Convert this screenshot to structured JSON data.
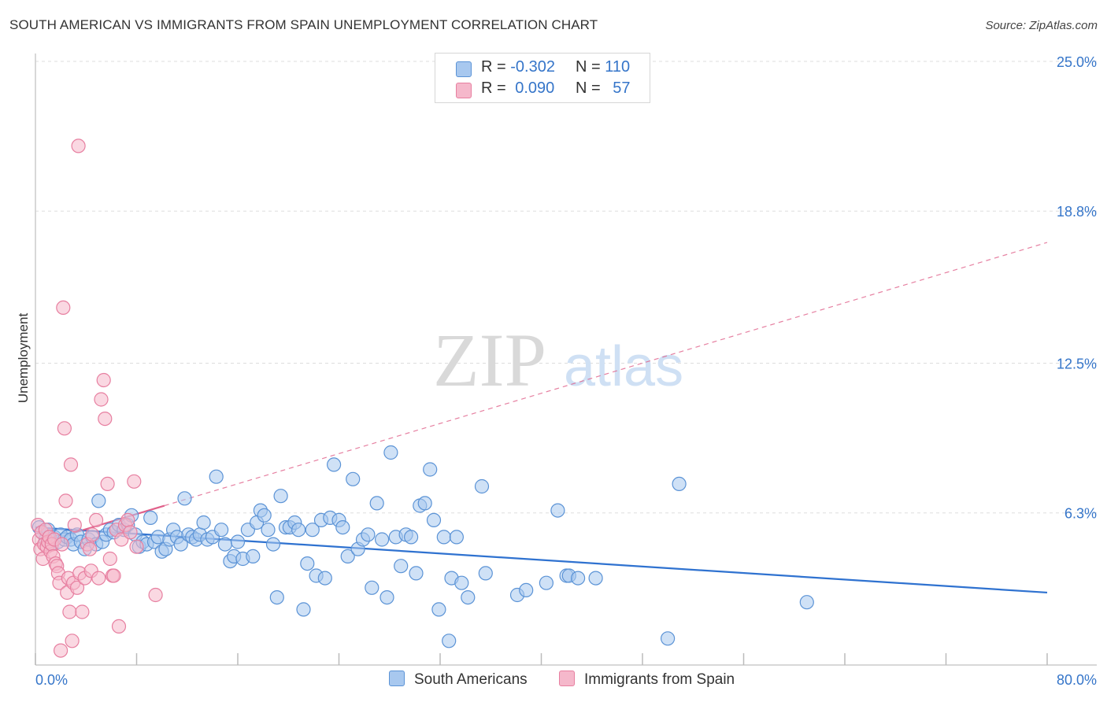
{
  "header": {
    "title": "SOUTH AMERICAN VS IMMIGRANTS FROM SPAIN UNEMPLOYMENT CORRELATION CHART",
    "source": "Source: ZipAtlas.com"
  },
  "watermark": {
    "zip": "ZIP",
    "atlas": "atlas"
  },
  "legend": {
    "rows": [
      {
        "r_label": "R =",
        "r_value": "-0.302",
        "n_label": "N =",
        "n_value": "110",
        "color": "#a8c8ef"
      },
      {
        "r_label": "R =",
        "r_value": "0.090",
        "n_label": "N =",
        "n_value": "57",
        "color": "#f5b8cb"
      }
    ]
  },
  "bottom_legend": {
    "items": [
      {
        "label": "South Americans",
        "color": "#a8c8ef"
      },
      {
        "label": "Immigrants from Spain",
        "color": "#f5b8cb"
      }
    ]
  },
  "colors": {
    "blue_fill": "#a8c8ef",
    "blue_stroke": "#5b93d6",
    "blue_line": "#2f72d0",
    "pink_fill": "#f5b8cb",
    "pink_stroke": "#e77fa0",
    "pink_line": "#e0608a",
    "grid": "#dddddd",
    "tick_text": "#3575c9"
  },
  "chart_data": {
    "type": "scatter",
    "title": "SOUTH AMERICAN VS IMMIGRANTS FROM SPAIN UNEMPLOYMENT CORRELATION CHART",
    "xlabel": "",
    "ylabel": "Unemployment",
    "xlim": [
      0,
      80
    ],
    "ylim": [
      0,
      25
    ],
    "x_tick_labels": [
      "0.0%",
      "80.0%"
    ],
    "y_ticks": [
      6.3,
      12.5,
      18.8,
      25.0
    ],
    "y_tick_labels": [
      "6.3%",
      "12.5%",
      "18.8%",
      "25.0%"
    ],
    "grid": true,
    "legend_position": "top-center",
    "series": [
      {
        "name": "South Americans",
        "R": -0.302,
        "N": 110,
        "trend": {
          "x": [
            0,
            80
          ],
          "y": [
            5.7,
            3.0
          ],
          "style": "solid"
        },
        "points": [
          [
            0.3,
            5.7
          ],
          [
            0.5,
            5.5
          ],
          [
            0.8,
            5.2
          ],
          [
            1.0,
            5.6
          ],
          [
            1.2,
            5.0
          ],
          [
            1.5,
            5.3
          ],
          [
            1.8,
            5.1
          ],
          [
            2.0,
            5.4
          ],
          [
            2.3,
            5.2
          ],
          [
            2.5,
            5.3
          ],
          [
            2.8,
            5.2
          ],
          [
            3.0,
            5.0
          ],
          [
            3.3,
            5.4
          ],
          [
            3.6,
            5.1
          ],
          [
            3.9,
            4.8
          ],
          [
            4.2,
            5.2
          ],
          [
            4.5,
            5.3
          ],
          [
            4.8,
            5.0
          ],
          [
            5.0,
            6.8
          ],
          [
            5.3,
            5.1
          ],
          [
            5.6,
            5.4
          ],
          [
            5.9,
            5.6
          ],
          [
            6.2,
            5.5
          ],
          [
            6.6,
            5.8
          ],
          [
            7.0,
            5.6
          ],
          [
            7.3,
            5.8
          ],
          [
            7.6,
            6.2
          ],
          [
            7.9,
            5.4
          ],
          [
            8.2,
            4.9
          ],
          [
            8.5,
            5.1
          ],
          [
            8.8,
            5.0
          ],
          [
            9.1,
            6.1
          ],
          [
            9.4,
            5.1
          ],
          [
            9.7,
            5.3
          ],
          [
            10.0,
            4.7
          ],
          [
            10.3,
            4.8
          ],
          [
            10.6,
            5.2
          ],
          [
            10.9,
            5.6
          ],
          [
            11.2,
            5.3
          ],
          [
            11.5,
            5.0
          ],
          [
            11.8,
            6.9
          ],
          [
            12.1,
            5.4
          ],
          [
            12.4,
            5.3
          ],
          [
            12.7,
            5.2
          ],
          [
            13.0,
            5.4
          ],
          [
            13.3,
            5.9
          ],
          [
            13.6,
            5.2
          ],
          [
            14.0,
            5.3
          ],
          [
            14.3,
            7.8
          ],
          [
            14.7,
            5.6
          ],
          [
            15.0,
            5.0
          ],
          [
            15.4,
            4.3
          ],
          [
            15.7,
            4.5
          ],
          [
            16.0,
            5.1
          ],
          [
            16.4,
            4.4
          ],
          [
            16.8,
            5.6
          ],
          [
            17.2,
            4.5
          ],
          [
            17.5,
            5.9
          ],
          [
            17.8,
            6.4
          ],
          [
            18.1,
            6.2
          ],
          [
            18.4,
            5.6
          ],
          [
            18.8,
            5.0
          ],
          [
            19.1,
            2.8
          ],
          [
            19.4,
            7.0
          ],
          [
            19.8,
            5.7
          ],
          [
            20.1,
            5.7
          ],
          [
            20.5,
            5.9
          ],
          [
            20.8,
            5.6
          ],
          [
            21.2,
            2.3
          ],
          [
            21.5,
            4.2
          ],
          [
            21.9,
            5.6
          ],
          [
            22.2,
            3.7
          ],
          [
            22.6,
            6.0
          ],
          [
            22.9,
            3.6
          ],
          [
            23.3,
            6.1
          ],
          [
            23.6,
            8.3
          ],
          [
            24.0,
            6.0
          ],
          [
            24.3,
            5.7
          ],
          [
            24.7,
            4.5
          ],
          [
            25.1,
            7.7
          ],
          [
            25.5,
            4.8
          ],
          [
            25.9,
            5.2
          ],
          [
            26.3,
            5.4
          ],
          [
            26.6,
            3.2
          ],
          [
            27.0,
            6.7
          ],
          [
            27.4,
            5.2
          ],
          [
            27.8,
            2.8
          ],
          [
            28.1,
            8.8
          ],
          [
            28.5,
            5.3
          ],
          [
            28.9,
            4.1
          ],
          [
            29.3,
            5.4
          ],
          [
            29.7,
            5.3
          ],
          [
            30.1,
            3.8
          ],
          [
            30.4,
            6.6
          ],
          [
            30.8,
            6.7
          ],
          [
            31.2,
            8.1
          ],
          [
            31.5,
            6.0
          ],
          [
            31.9,
            2.3
          ],
          [
            32.3,
            5.3
          ],
          [
            32.7,
            1.0
          ],
          [
            32.9,
            3.6
          ],
          [
            33.3,
            5.3
          ],
          [
            33.7,
            3.4
          ],
          [
            34.2,
            2.8
          ],
          [
            35.3,
            7.4
          ],
          [
            35.6,
            3.8
          ],
          [
            38.1,
            2.9
          ],
          [
            38.8,
            3.1
          ],
          [
            40.4,
            3.4
          ],
          [
            41.3,
            6.4
          ],
          [
            42.0,
            3.7
          ],
          [
            42.2,
            3.7
          ],
          [
            42.9,
            3.6
          ],
          [
            44.3,
            3.6
          ],
          [
            50.0,
            1.1
          ],
          [
            50.9,
            7.5
          ],
          [
            61.0,
            2.6
          ]
        ]
      },
      {
        "name": "Immigrants from Spain",
        "R": 0.09,
        "N": 57,
        "trend": {
          "x": [
            0,
            10.2
          ],
          "y": [
            5.0,
            6.6
          ],
          "style": "solid",
          "extension": {
            "x": [
              10.2,
              80
            ],
            "y": [
              6.6,
              17.5
            ],
            "style": "dashed"
          }
        },
        "points": [
          [
            0.2,
            5.8
          ],
          [
            0.3,
            5.2
          ],
          [
            0.4,
            4.8
          ],
          [
            0.5,
            5.5
          ],
          [
            0.6,
            4.4
          ],
          [
            0.7,
            5.0
          ],
          [
            0.8,
            5.6
          ],
          [
            0.9,
            4.9
          ],
          [
            1.0,
            5.1
          ],
          [
            1.1,
            5.3
          ],
          [
            1.2,
            4.7
          ],
          [
            1.3,
            5.0
          ],
          [
            1.4,
            4.5
          ],
          [
            1.5,
            5.2
          ],
          [
            1.6,
            4.2
          ],
          [
            1.7,
            4.1
          ],
          [
            1.8,
            3.8
          ],
          [
            1.9,
            3.4
          ],
          [
            2.0,
            0.6
          ],
          [
            2.1,
            5.0
          ],
          [
            2.2,
            14.8
          ],
          [
            2.3,
            9.8
          ],
          [
            2.4,
            6.8
          ],
          [
            2.5,
            3.0
          ],
          [
            2.6,
            3.6
          ],
          [
            2.7,
            2.2
          ],
          [
            2.8,
            8.3
          ],
          [
            2.9,
            1.0
          ],
          [
            3.0,
            3.4
          ],
          [
            3.1,
            5.8
          ],
          [
            3.3,
            3.2
          ],
          [
            3.5,
            3.8
          ],
          [
            3.7,
            2.2
          ],
          [
            3.9,
            3.6
          ],
          [
            4.1,
            5.0
          ],
          [
            4.3,
            4.8
          ],
          [
            3.4,
            21.5
          ],
          [
            4.4,
            3.9
          ],
          [
            4.5,
            5.4
          ],
          [
            4.8,
            6.0
          ],
          [
            5.0,
            3.6
          ],
          [
            5.2,
            11.0
          ],
          [
            5.4,
            11.8
          ],
          [
            5.5,
            10.2
          ],
          [
            5.7,
            7.5
          ],
          [
            5.9,
            4.4
          ],
          [
            6.1,
            3.7
          ],
          [
            6.4,
            5.6
          ],
          [
            6.6,
            1.6
          ],
          [
            6.8,
            5.2
          ],
          [
            7.1,
            5.8
          ],
          [
            7.3,
            6.0
          ],
          [
            7.5,
            5.5
          ],
          [
            7.8,
            7.6
          ],
          [
            8.0,
            4.9
          ],
          [
            9.5,
            2.9
          ],
          [
            6.2,
            3.7
          ]
        ]
      }
    ]
  }
}
